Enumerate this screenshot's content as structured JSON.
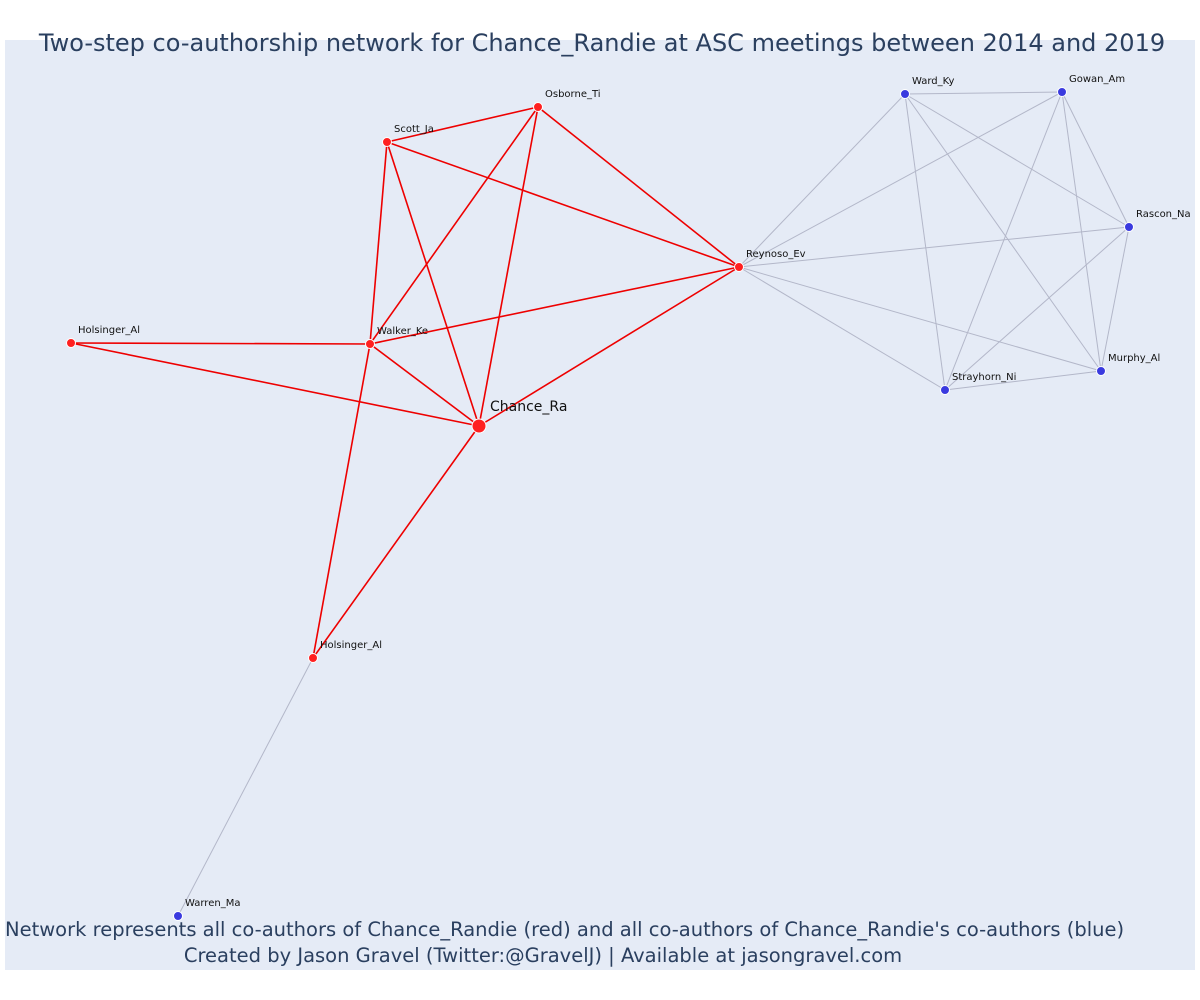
{
  "title": "Two-step co-authorship network for Chance_Randie at ASC meetings between 2014 and 2019",
  "caption": {
    "line1": "Network represents all co-authors of Chance_Randie (red) and all co-authors of Chance_Randie's co-authors (blue)",
    "line2": "Created by Jason Gravel (Twitter:@GravelJ) | Available at jasongravel.com"
  },
  "colors": {
    "background": "#e5ebf6",
    "red_node": "#ff2020",
    "blue_node": "#3a3adf",
    "red_edge": "#ee0000",
    "grey_edge": "#b3b7c9",
    "text": "#2a3f5f"
  },
  "nodes": [
    {
      "id": "chance",
      "label": "Chance_Ra",
      "group": "focal"
    },
    {
      "id": "walker",
      "label": "Walker_Ke",
      "group": "red"
    },
    {
      "id": "scott",
      "label": "Scott_Ja",
      "group": "red"
    },
    {
      "id": "osborne",
      "label": "Osborne_Ti",
      "group": "red"
    },
    {
      "id": "reynoso",
      "label": "Reynoso_Ev",
      "group": "red"
    },
    {
      "id": "holsinger1",
      "label": "Holsinger_Al",
      "group": "red"
    },
    {
      "id": "holsinger2",
      "label": "Holsinger_Al",
      "group": "red"
    },
    {
      "id": "warren",
      "label": "Warren_Ma",
      "group": "blue"
    },
    {
      "id": "ward",
      "label": "Ward_Ky",
      "group": "blue"
    },
    {
      "id": "gowan",
      "label": "Gowan_Am",
      "group": "blue"
    },
    {
      "id": "rascon",
      "label": "Rascon_Na",
      "group": "blue"
    },
    {
      "id": "murphy",
      "label": "Murphy_Al",
      "group": "blue"
    },
    {
      "id": "strayhorn",
      "label": "Strayhorn_Ni",
      "group": "blue"
    }
  ],
  "edges": [
    [
      "chance",
      "walker",
      "red"
    ],
    [
      "chance",
      "scott",
      "red"
    ],
    [
      "chance",
      "osborne",
      "red"
    ],
    [
      "chance",
      "reynoso",
      "red"
    ],
    [
      "chance",
      "holsinger1",
      "red"
    ],
    [
      "chance",
      "holsinger2",
      "red"
    ],
    [
      "walker",
      "scott",
      "red"
    ],
    [
      "walker",
      "osborne",
      "red"
    ],
    [
      "walker",
      "reynoso",
      "red"
    ],
    [
      "walker",
      "holsinger1",
      "red"
    ],
    [
      "walker",
      "holsinger2",
      "red"
    ],
    [
      "scott",
      "osborne",
      "red"
    ],
    [
      "scott",
      "reynoso",
      "red"
    ],
    [
      "osborne",
      "reynoso",
      "red"
    ],
    [
      "holsinger2",
      "warren",
      "grey"
    ],
    [
      "reynoso",
      "ward",
      "grey"
    ],
    [
      "reynoso",
      "gowan",
      "grey"
    ],
    [
      "reynoso",
      "rascon",
      "grey"
    ],
    [
      "reynoso",
      "murphy",
      "grey"
    ],
    [
      "reynoso",
      "strayhorn",
      "grey"
    ],
    [
      "ward",
      "gowan",
      "grey"
    ],
    [
      "ward",
      "rascon",
      "grey"
    ],
    [
      "ward",
      "murphy",
      "grey"
    ],
    [
      "ward",
      "strayhorn",
      "grey"
    ],
    [
      "gowan",
      "rascon",
      "grey"
    ],
    [
      "gowan",
      "murphy",
      "grey"
    ],
    [
      "gowan",
      "strayhorn",
      "grey"
    ],
    [
      "rascon",
      "murphy",
      "grey"
    ],
    [
      "rascon",
      "strayhorn",
      "grey"
    ],
    [
      "murphy",
      "strayhorn",
      "grey"
    ]
  ]
}
